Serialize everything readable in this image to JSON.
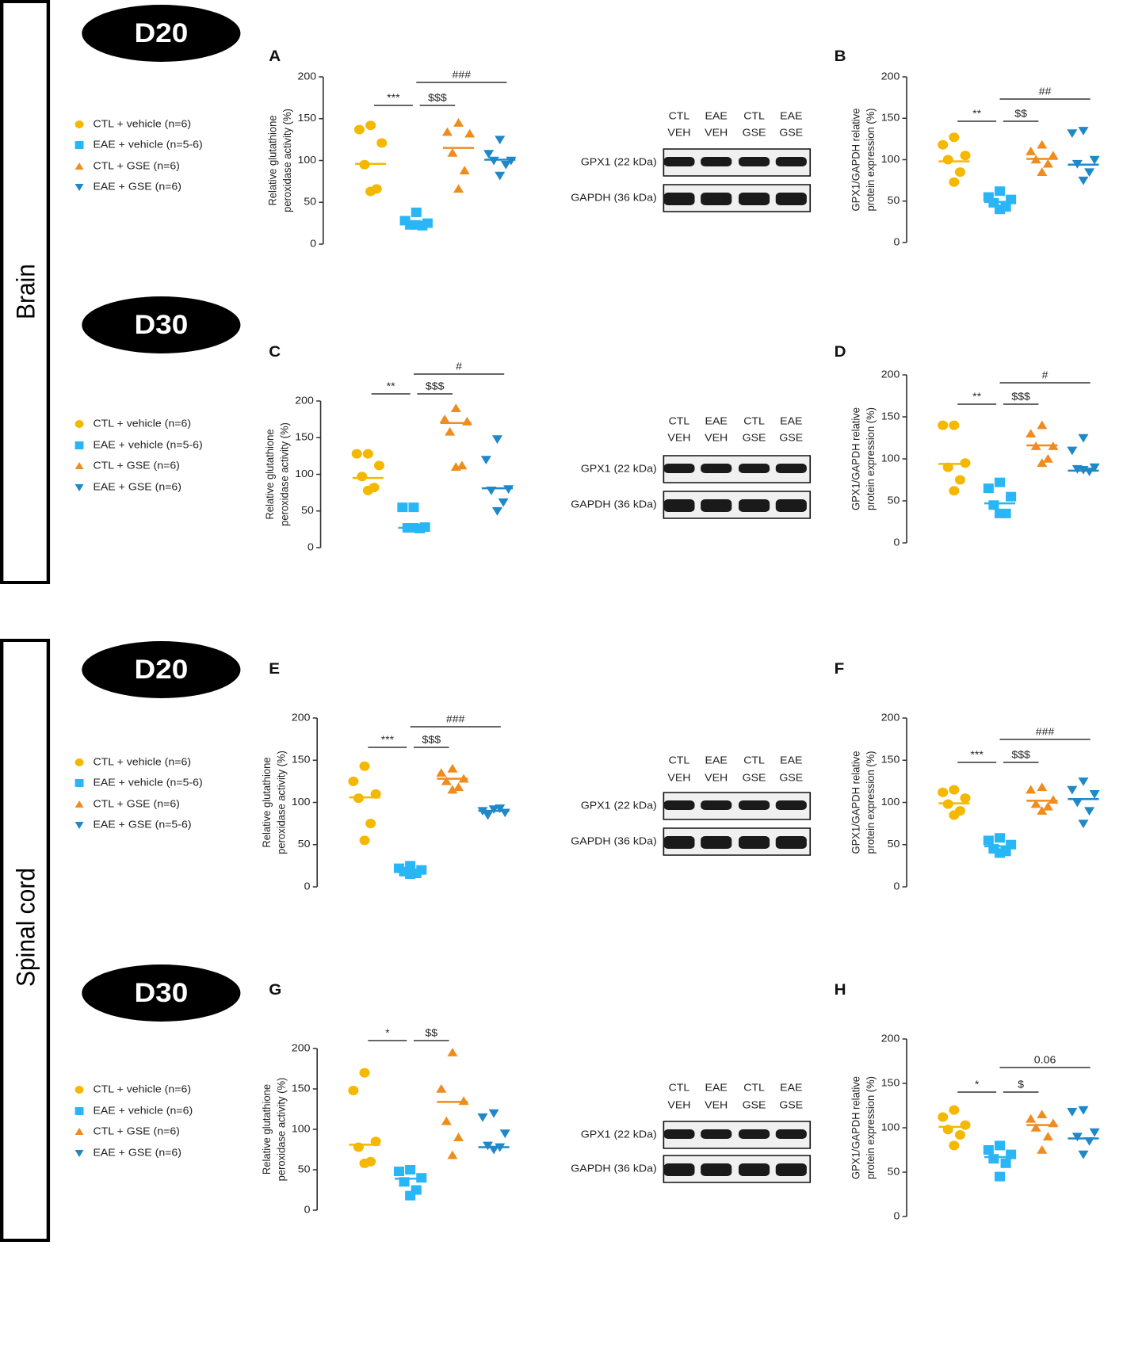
{
  "regions": [
    "Brain",
    "Spinal cord"
  ],
  "blot": {
    "lanes": [
      [
        "CTL",
        "VEH"
      ],
      [
        "EAE",
        "VEH"
      ],
      [
        "CTL",
        "GSE"
      ],
      [
        "EAE",
        "GSE"
      ]
    ],
    "bands": [
      "GPX1 (22 kDa)",
      "GAPDH (36 kDa)"
    ]
  },
  "rows": [
    {
      "day": "D20",
      "legend": [
        {
          "name": "CTL + vehicle (n=6)",
          "color": "#f5b800",
          "marker": "circle"
        },
        {
          "name": "EAE + vehicle (n=5-6)",
          "color": "#29b6f6",
          "marker": "square"
        },
        {
          "name": "CTL + GSE (n=6)",
          "color": "#f08c1e",
          "marker": "triangle-up"
        },
        {
          "name": "EAE + GSE (n=6)",
          "color": "#1e88c8",
          "marker": "triangle-down"
        }
      ]
    },
    {
      "day": "D30",
      "legend": [
        {
          "name": "CTL + vehicle (n=6)",
          "color": "#f5b800",
          "marker": "circle"
        },
        {
          "name": "EAE + vehicle (n=5-6)",
          "color": "#29b6f6",
          "marker": "square"
        },
        {
          "name": "CTL + GSE (n=6)",
          "color": "#f08c1e",
          "marker": "triangle-up"
        },
        {
          "name": "EAE + GSE (n=6)",
          "color": "#1e88c8",
          "marker": "triangle-down"
        }
      ]
    },
    {
      "day": "D20",
      "legend": [
        {
          "name": "CTL + vehicle (n=6)",
          "color": "#f5b800",
          "marker": "circle"
        },
        {
          "name": "EAE + vehicle (n=5-6)",
          "color": "#29b6f6",
          "marker": "square"
        },
        {
          "name": "CTL + GSE (n=6)",
          "color": "#f08c1e",
          "marker": "triangle-up"
        },
        {
          "name": "EAE + GSE (n=5-6)",
          "color": "#1e88c8",
          "marker": "triangle-down"
        }
      ]
    },
    {
      "day": "D30",
      "legend": [
        {
          "name": "CTL + vehicle (n=6)",
          "color": "#f5b800",
          "marker": "circle"
        },
        {
          "name": "EAE + vehicle (n=6)",
          "color": "#29b6f6",
          "marker": "square"
        },
        {
          "name": "CTL + GSE (n=6)",
          "color": "#f08c1e",
          "marker": "triangle-up"
        },
        {
          "name": "EAE + GSE (n=6)",
          "color": "#1e88c8",
          "marker": "triangle-down"
        }
      ]
    }
  ],
  "chart_data": [
    {
      "type": "scatter",
      "letter": "A",
      "ylabel": [
        "Relative glutathione",
        "peroxidase activity (%)"
      ],
      "ylim": [
        0,
        200
      ],
      "yticks": [
        0,
        50,
        100,
        150,
        200
      ],
      "series": [
        {
          "values": [
            142,
            137,
            121,
            95,
            66,
            63
          ],
          "median": 96
        },
        {
          "values": [
            38,
            28,
            25,
            23,
            22,
            23
          ],
          "median": 24
        },
        {
          "values": [
            145,
            134,
            132,
            109,
            88,
            66
          ],
          "median": 115
        },
        {
          "values": [
            125,
            108,
            100,
            100,
            95,
            82
          ],
          "median": 101
        }
      ],
      "annotations": [
        {
          "label": "***",
          "groups": [
            0,
            1
          ],
          "level": 0
        },
        {
          "label": "$$$",
          "groups": [
            1,
            2
          ],
          "level": 0
        },
        {
          "label": "###",
          "groups": [
            1,
            3
          ],
          "level": 1
        }
      ]
    },
    {
      "type": "scatter",
      "letter": "B",
      "ylabel": [
        "GPX1/GAPDH relative",
        "protein expression (%)"
      ],
      "ylim": [
        0,
        200
      ],
      "yticks": [
        0,
        50,
        100,
        150,
        200
      ],
      "series": [
        {
          "values": [
            127,
            118,
            105,
            100,
            85,
            73
          ],
          "median": 98
        },
        {
          "values": [
            62,
            55,
            52,
            48,
            43,
            40
          ],
          "median": 49
        },
        {
          "values": [
            118,
            110,
            105,
            100,
            95,
            85
          ],
          "median": 101
        },
        {
          "values": [
            135,
            132,
            100,
            95,
            85,
            75
          ],
          "median": 94
        }
      ],
      "annotations": [
        {
          "label": "**",
          "groups": [
            0,
            1
          ],
          "level": 0
        },
        {
          "label": "$$",
          "groups": [
            1,
            2
          ],
          "level": 0
        },
        {
          "label": "##",
          "groups": [
            1,
            3
          ],
          "level": 1
        }
      ]
    },
    {
      "type": "scatter",
      "letter": "C",
      "ylabel": [
        "Relative glutathione",
        "peroxidase activity (%)"
      ],
      "ylim": [
        0,
        200
      ],
      "yticks": [
        0,
        50,
        100,
        150,
        200
      ],
      "series": [
        {
          "values": [
            128,
            128,
            112,
            97,
            82,
            78
          ],
          "median": 95
        },
        {
          "values": [
            55,
            55,
            28,
            27,
            26,
            27
          ],
          "median": 27
        },
        {
          "values": [
            190,
            175,
            172,
            158,
            112,
            110
          ],
          "median": 170
        },
        {
          "values": [
            148,
            120,
            80,
            78,
            62,
            50
          ],
          "median": 81
        }
      ],
      "annotations": [
        {
          "label": "**",
          "groups": [
            0,
            1
          ],
          "level": 0
        },
        {
          "label": "$$$",
          "groups": [
            1,
            2
          ],
          "level": 0
        },
        {
          "label": "#",
          "groups": [
            1,
            3
          ],
          "level": 1
        }
      ]
    },
    {
      "type": "scatter",
      "letter": "D",
      "ylabel": [
        "GPX1/GAPDH relative",
        "protein expression (%)"
      ],
      "ylim": [
        0,
        200
      ],
      "yticks": [
        0,
        50,
        100,
        150,
        200
      ],
      "series": [
        {
          "values": [
            140,
            140,
            95,
            90,
            75,
            62
          ],
          "median": 94
        },
        {
          "values": [
            72,
            65,
            55,
            45,
            35,
            35
          ],
          "median": 47
        },
        {
          "values": [
            140,
            130,
            115,
            115,
            100,
            95
          ],
          "median": 116
        },
        {
          "values": [
            125,
            110,
            90,
            88,
            85,
            87
          ],
          "median": 86
        }
      ],
      "annotations": [
        {
          "label": "**",
          "groups": [
            0,
            1
          ],
          "level": 0
        },
        {
          "label": "$$$",
          "groups": [
            1,
            2
          ],
          "level": 0
        },
        {
          "label": "#",
          "groups": [
            1,
            3
          ],
          "level": 1
        }
      ]
    },
    {
      "type": "scatter",
      "letter": "E",
      "ylabel": [
        "Relative glutathione",
        "peroxidase activity (%)"
      ],
      "ylim": [
        0,
        200
      ],
      "yticks": [
        0,
        50,
        100,
        150,
        200
      ],
      "series": [
        {
          "values": [
            143,
            125,
            110,
            105,
            75,
            55
          ],
          "median": 106
        },
        {
          "values": [
            25,
            22,
            20,
            18,
            16,
            15
          ],
          "median": 19
        },
        {
          "values": [
            140,
            135,
            128,
            125,
            118,
            115
          ],
          "median": 128
        },
        {
          "values": [
            92,
            90,
            88,
            85,
            93
          ],
          "median": 90
        }
      ],
      "annotations": [
        {
          "label": "***",
          "groups": [
            0,
            1
          ],
          "level": 0
        },
        {
          "label": "$$$",
          "groups": [
            1,
            2
          ],
          "level": 0
        },
        {
          "label": "###",
          "groups": [
            1,
            3
          ],
          "level": 1
        }
      ]
    },
    {
      "type": "scatter",
      "letter": "F",
      "ylabel": [
        "GPX1/GAPDH relative",
        "protein expression (%)"
      ],
      "ylim": [
        0,
        200
      ],
      "yticks": [
        0,
        50,
        100,
        150,
        200
      ],
      "series": [
        {
          "values": [
            115,
            112,
            105,
            98,
            90,
            85
          ],
          "median": 99
        },
        {
          "values": [
            58,
            55,
            50,
            45,
            42,
            40
          ],
          "median": 48
        },
        {
          "values": [
            118,
            115,
            103,
            98,
            95,
            90
          ],
          "median": 102
        },
        {
          "values": [
            125,
            115,
            110,
            100,
            90,
            75
          ],
          "median": 104
        }
      ],
      "annotations": [
        {
          "label": "***",
          "groups": [
            0,
            1
          ],
          "level": 0
        },
        {
          "label": "$$$",
          "groups": [
            1,
            2
          ],
          "level": 0
        },
        {
          "label": "###",
          "groups": [
            1,
            3
          ],
          "level": 1
        }
      ]
    },
    {
      "type": "scatter",
      "letter": "G",
      "ylabel": [
        "Relative glutathione",
        "peroxidase activity (%)"
      ],
      "ylim": [
        0,
        200
      ],
      "yticks": [
        0,
        50,
        100,
        150,
        200
      ],
      "series": [
        {
          "values": [
            170,
            148,
            85,
            78,
            60,
            58
          ],
          "median": 81
        },
        {
          "values": [
            50,
            48,
            40,
            35,
            25,
            18
          ],
          "median": 39
        },
        {
          "values": [
            195,
            150,
            135,
            110,
            90,
            68
          ],
          "median": 134
        },
        {
          "values": [
            120,
            115,
            95,
            80,
            78,
            75
          ],
          "median": 78
        }
      ],
      "annotations": [
        {
          "label": "*",
          "groups": [
            0,
            1
          ],
          "level": 0
        },
        {
          "label": "$$",
          "groups": [
            1,
            2
          ],
          "level": 0
        }
      ]
    },
    {
      "type": "scatter",
      "letter": "H",
      "ylabel": [
        "GPX1/GAPDH relative",
        "protein expression (%)"
      ],
      "ylim": [
        0,
        200
      ],
      "yticks": [
        0,
        50,
        100,
        150,
        200
      ],
      "series": [
        {
          "values": [
            120,
            112,
            103,
            98,
            92,
            80
          ],
          "median": 101
        },
        {
          "values": [
            80,
            75,
            70,
            65,
            60,
            45
          ],
          "median": 67
        },
        {
          "values": [
            115,
            110,
            105,
            100,
            90,
            75
          ],
          "median": 103
        },
        {
          "values": [
            120,
            118,
            95,
            90,
            85,
            70
          ],
          "median": 88
        }
      ],
      "annotations": [
        {
          "label": "*",
          "groups": [
            0,
            1
          ],
          "level": 0
        },
        {
          "label": "$",
          "groups": [
            1,
            2
          ],
          "level": 0
        },
        {
          "label": "0.06",
          "groups": [
            1,
            3
          ],
          "level": 1
        }
      ]
    }
  ]
}
